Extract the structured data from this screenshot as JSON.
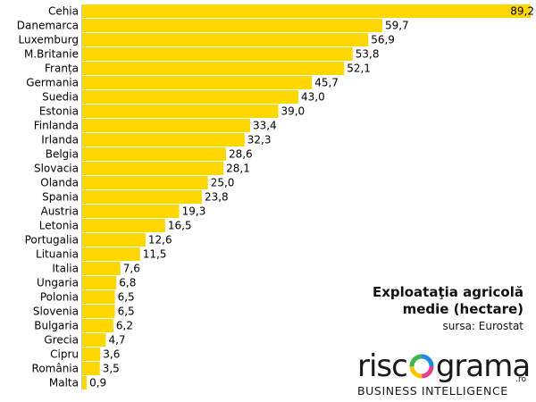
{
  "colors": {
    "bar": "#FFD700",
    "text": "#000000"
  },
  "chart_data": {
    "type": "bar",
    "orientation": "horizontal",
    "title": "Exploataţia agricolă\nmedie (hectare)",
    "source": "sursa: Eurostat",
    "categories": [
      "Cehia",
      "Danemarca",
      "Luxemburg",
      "M.Britanie",
      "Franța",
      "Germania",
      "Suedia",
      "Estonia",
      "Finlanda",
      "Irlanda",
      "Belgia",
      "Slovacia",
      "Olanda",
      "Spania",
      "Austria",
      "Letonia",
      "Portugalia",
      "Lituania",
      "Italia",
      "Ungaria",
      "Polonia",
      "Slovenia",
      "Bulgaria",
      "Grecia",
      "Cipru",
      "România",
      "Malta"
    ],
    "values": [
      89.2,
      59.7,
      56.9,
      53.8,
      52.1,
      45.7,
      43.0,
      39.0,
      33.4,
      32.3,
      28.6,
      28.1,
      25.0,
      23.8,
      19.3,
      16.5,
      12.6,
      11.5,
      7.6,
      6.8,
      6.5,
      6.5,
      6.2,
      4.7,
      3.6,
      3.5,
      0.9
    ],
    "value_labels": [
      "89,2",
      "59,7",
      "56,9",
      "53,8",
      "52,1",
      "45,7",
      "43,0",
      "39,0",
      "33,4",
      "32,3",
      "28,6",
      "28,1",
      "25,0",
      "23,8",
      "19,3",
      "16,5",
      "12,6",
      "11,5",
      "7,6",
      "6,8",
      "6,5",
      "6,5",
      "6,2",
      "4,7",
      "3,6",
      "3,5",
      "0,9"
    ],
    "xlim": [
      0,
      89.2
    ],
    "grid": false,
    "legend": "none"
  },
  "logo": {
    "part1": "risc",
    "part2": "grama",
    "suffix": ".ro",
    "tagline": "BUSINESS INTELLIGENCE"
  }
}
